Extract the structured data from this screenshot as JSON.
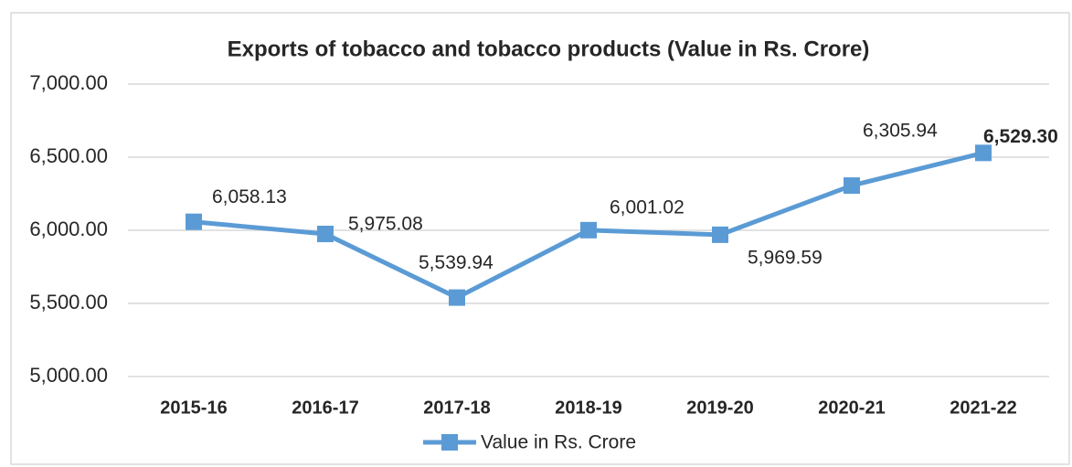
{
  "chart_data": {
    "type": "line",
    "title": "Exports of tobacco and tobacco products (Value in Rs. Crore)",
    "categories": [
      "2015-16",
      "2016-17",
      "2017-18",
      "2018-19",
      "2019-20",
      "2020-21",
      "2021-22"
    ],
    "series": [
      {
        "name": "Value in Rs. Crore",
        "color": "#5b9bd5",
        "values": [
          6058.13,
          5975.08,
          5539.94,
          6001.02,
          5969.59,
          6305.94,
          6529.3
        ],
        "value_labels": [
          "6,058.13",
          "5,975.08",
          "5,539.94",
          "6,001.02",
          "5,969.59",
          "6,305.94",
          "6,529.30"
        ]
      }
    ],
    "ylim": [
      5000,
      7000
    ],
    "yticks": [
      {
        "value": 5000,
        "label": "5,000.00"
      },
      {
        "value": 5500,
        "label": "5,500.00"
      },
      {
        "value": 6000,
        "label": "6,000.00"
      },
      {
        "value": 6500,
        "label": "6,500.00"
      },
      {
        "value": 7000,
        "label": "7,000.00"
      }
    ],
    "grid": true,
    "legend": "bottom"
  }
}
